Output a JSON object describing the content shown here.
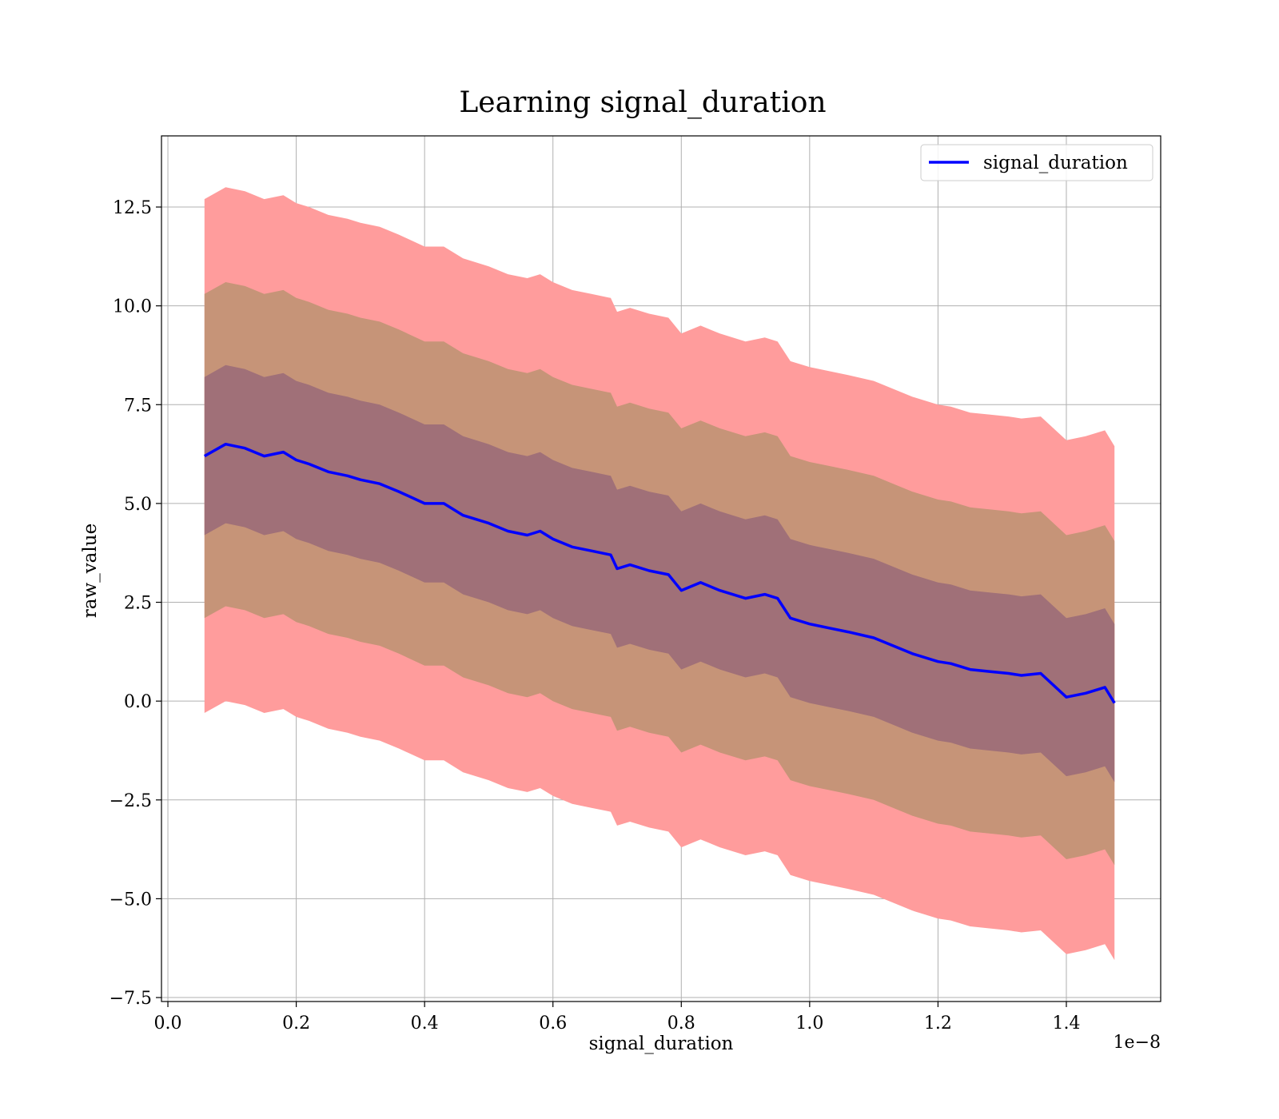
{
  "chart_data": {
    "type": "line",
    "title": "Learning signal_duration",
    "xlabel": "signal_duration",
    "ylabel": "raw_value",
    "x_offset_label": "1e−8",
    "xlim": [
      -0.01,
      1.547
    ],
    "ylim": [
      -7.6,
      14.3
    ],
    "x_ticks": [
      0.0,
      0.2,
      0.4,
      0.6,
      0.8,
      1.0,
      1.2,
      1.4
    ],
    "x_tick_labels": [
      "0.0",
      "0.2",
      "0.4",
      "0.6",
      "0.8",
      "1.0",
      "1.2",
      "1.4"
    ],
    "y_ticks": [
      -7.5,
      -5.0,
      -2.5,
      0.0,
      2.5,
      5.0,
      7.5,
      10.0,
      12.5
    ],
    "y_tick_labels": [
      "−7.5",
      "−5.0",
      "−2.5",
      "0.0",
      "2.5",
      "5.0",
      "7.5",
      "10.0",
      "12.5"
    ],
    "grid": true,
    "legend_position": "top-right",
    "bands_half_widths": [
      6.5,
      4.1,
      2.0
    ],
    "band_colors": [
      "#ff9c9c",
      "#c69478",
      "#a07078"
    ],
    "x": [
      0.057,
      0.09,
      0.12,
      0.15,
      0.18,
      0.2,
      0.22,
      0.25,
      0.28,
      0.3,
      0.33,
      0.36,
      0.4,
      0.43,
      0.46,
      0.5,
      0.53,
      0.56,
      0.58,
      0.6,
      0.63,
      0.66,
      0.69,
      0.7,
      0.72,
      0.75,
      0.78,
      0.8,
      0.83,
      0.86,
      0.9,
      0.93,
      0.95,
      0.97,
      1.0,
      1.03,
      1.06,
      1.1,
      1.13,
      1.16,
      1.2,
      1.22,
      1.25,
      1.28,
      1.31,
      1.33,
      1.36,
      1.4,
      1.43,
      1.46,
      1.475
    ],
    "series": [
      {
        "name": "signal_duration",
        "color": "#0000ff",
        "values": [
          6.2,
          6.5,
          6.4,
          6.2,
          6.3,
          6.1,
          6.0,
          5.8,
          5.7,
          5.6,
          5.5,
          5.3,
          5.0,
          5.0,
          4.7,
          4.5,
          4.3,
          4.2,
          4.3,
          4.1,
          3.9,
          3.8,
          3.7,
          3.35,
          3.45,
          3.3,
          3.2,
          2.8,
          3.0,
          2.8,
          2.6,
          2.7,
          2.6,
          2.1,
          1.95,
          1.85,
          1.75,
          1.6,
          1.4,
          1.2,
          1.0,
          0.95,
          0.8,
          0.75,
          0.7,
          0.65,
          0.7,
          0.1,
          0.2,
          0.35,
          -0.05
        ]
      }
    ]
  }
}
